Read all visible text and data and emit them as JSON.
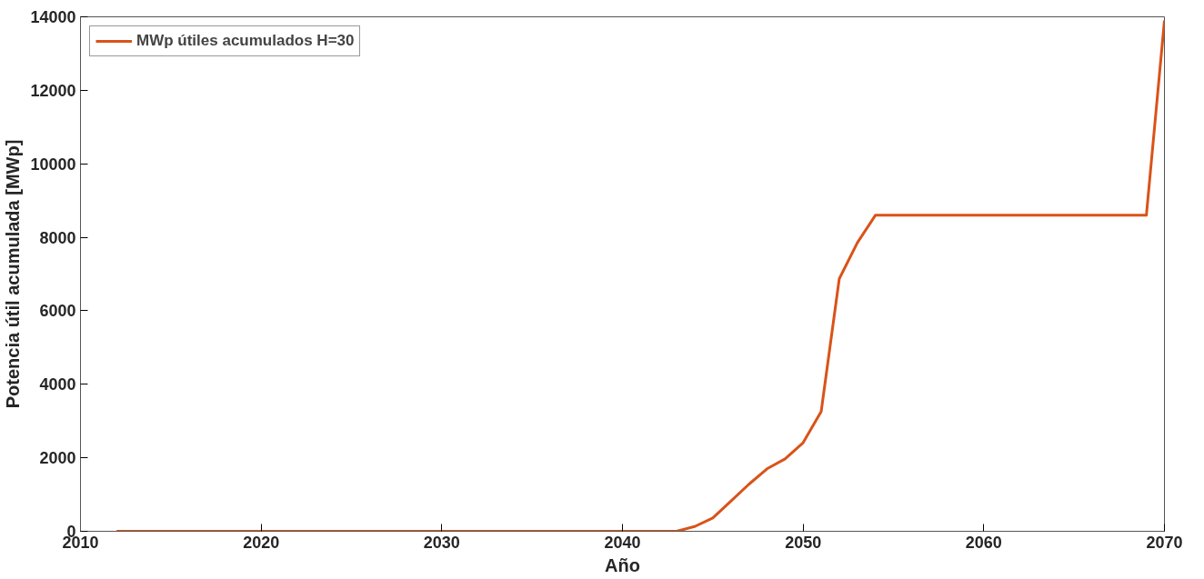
{
  "chart_data": {
    "type": "line",
    "xlabel": "Año",
    "ylabel": "Potencia útil acumulada [MWp]",
    "x": [
      2012,
      2013,
      2014,
      2015,
      2016,
      2017,
      2018,
      2019,
      2020,
      2021,
      2022,
      2023,
      2024,
      2025,
      2026,
      2027,
      2028,
      2029,
      2030,
      2031,
      2032,
      2033,
      2034,
      2035,
      2036,
      2037,
      2038,
      2039,
      2040,
      2041,
      2042,
      2043,
      2044,
      2045,
      2046,
      2047,
      2048,
      2049,
      2050,
      2051,
      2052,
      2053,
      2054,
      2055,
      2056,
      2057,
      2058,
      2059,
      2060,
      2061,
      2062,
      2063,
      2064,
      2065,
      2066,
      2067,
      2068,
      2069,
      2070
    ],
    "series": [
      {
        "name": "MWp útiles acumulados H=30",
        "color": "#d95319",
        "values": [
          0,
          0,
          0,
          0,
          0,
          0,
          0,
          0,
          0,
          0,
          0,
          0,
          0,
          0,
          0,
          0,
          0,
          0,
          0,
          0,
          0,
          0,
          0,
          0,
          0,
          0,
          0,
          0,
          0,
          0,
          0,
          0,
          130,
          360,
          820,
          1280,
          1700,
          1970,
          2410,
          3260,
          6870,
          7850,
          8600,
          8600,
          8600,
          8600,
          8600,
          8600,
          8600,
          8600,
          8600,
          8600,
          8600,
          8600,
          8600,
          8600,
          8600,
          8600,
          13900
        ]
      }
    ],
    "xlim": [
      2010,
      2070
    ],
    "xticks": [
      2010,
      2020,
      2030,
      2040,
      2050,
      2060,
      2070
    ],
    "ylim": [
      0,
      14000
    ],
    "yticks": [
      0,
      2000,
      4000,
      6000,
      8000,
      10000,
      12000,
      14000
    ],
    "grid": false,
    "legend": "top left",
    "line_style": "solid"
  }
}
